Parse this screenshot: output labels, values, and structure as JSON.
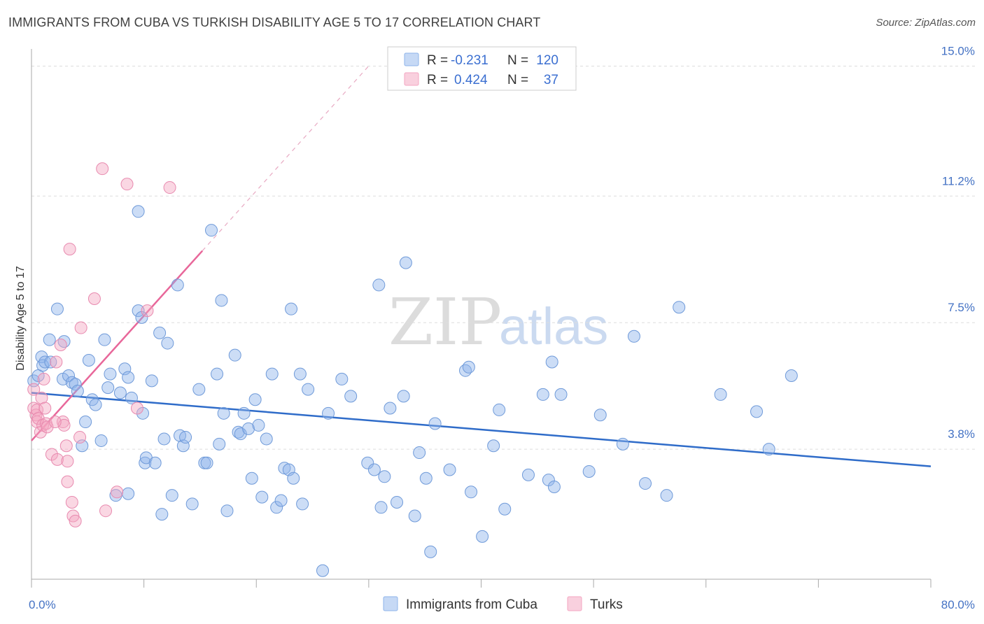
{
  "header": {
    "title": "IMMIGRANTS FROM CUBA VS TURKISH DISABILITY AGE 5 TO 17 CORRELATION CHART",
    "source": "Source: ZipAtlas.com"
  },
  "watermark": {
    "zip": "ZIP",
    "atlas": "atlas"
  },
  "legend": {
    "rows": [
      {
        "r_label": "R =",
        "r_value": "-0.231",
        "n_label": "N =",
        "n_value": "120",
        "color": "#8fb4ea"
      },
      {
        "r_label": "R =",
        "r_value": "0.424",
        "n_label": "N =",
        "n_value": "37",
        "color": "#f4a6c2"
      }
    ]
  },
  "chart_data": {
    "type": "scatter",
    "ylabel": "Disability Age 5 to 17",
    "xlim": [
      0,
      80
    ],
    "ylim": [
      0,
      15.5
    ],
    "y_ticks": [
      {
        "value": 3.8,
        "label": "3.8%"
      },
      {
        "value": 7.5,
        "label": "7.5%"
      },
      {
        "value": 11.2,
        "label": "11.2%"
      },
      {
        "value": 15.0,
        "label": "15.0%"
      }
    ],
    "x_tick_labels": [
      {
        "value": 0,
        "label": "0.0%"
      },
      {
        "value": 80,
        "label": "80.0%"
      }
    ],
    "grid": true,
    "legend_position": "top-center",
    "series": [
      {
        "name": "Immigrants from Cuba",
        "color": "#8fb4ea",
        "edge": "#6f9ad9",
        "trend": {
          "x": [
            0,
            80
          ],
          "y": [
            5.45,
            3.3
          ],
          "color": "#2f6cc9"
        },
        "points": [
          [
            0.2,
            5.8
          ],
          [
            0.6,
            5.95
          ],
          [
            0.9,
            6.5
          ],
          [
            1.0,
            6.25
          ],
          [
            1.2,
            6.35
          ],
          [
            1.6,
            7.0
          ],
          [
            1.7,
            6.35
          ],
          [
            2.3,
            7.9
          ],
          [
            2.8,
            5.85
          ],
          [
            2.9,
            6.95
          ],
          [
            3.3,
            5.95
          ],
          [
            3.6,
            5.75
          ],
          [
            3.9,
            5.7
          ],
          [
            4.1,
            5.5
          ],
          [
            4.5,
            3.9
          ],
          [
            4.8,
            4.6
          ],
          [
            5.1,
            6.4
          ],
          [
            5.4,
            5.25
          ],
          [
            5.7,
            5.1
          ],
          [
            6.2,
            4.05
          ],
          [
            6.5,
            7.0
          ],
          [
            6.8,
            5.6
          ],
          [
            7.0,
            6.0
          ],
          [
            7.5,
            2.45
          ],
          [
            7.9,
            5.45
          ],
          [
            8.3,
            6.15
          ],
          [
            8.6,
            5.9
          ],
          [
            8.6,
            2.5
          ],
          [
            8.9,
            5.3
          ],
          [
            9.5,
            7.85
          ],
          [
            9.5,
            10.75
          ],
          [
            9.8,
            7.65
          ],
          [
            9.9,
            4.85
          ],
          [
            10.1,
            3.4
          ],
          [
            10.2,
            3.55
          ],
          [
            10.7,
            5.8
          ],
          [
            11.0,
            3.4
          ],
          [
            11.4,
            7.2
          ],
          [
            11.6,
            1.9
          ],
          [
            11.8,
            4.1
          ],
          [
            12.1,
            6.9
          ],
          [
            12.5,
            2.45
          ],
          [
            13.0,
            8.6
          ],
          [
            13.2,
            4.2
          ],
          [
            13.5,
            3.9
          ],
          [
            13.7,
            4.15
          ],
          [
            14.3,
            2.2
          ],
          [
            14.9,
            5.55
          ],
          [
            15.4,
            3.4
          ],
          [
            15.6,
            3.4
          ],
          [
            16.0,
            10.2
          ],
          [
            16.5,
            6.0
          ],
          [
            16.7,
            3.95
          ],
          [
            16.9,
            8.15
          ],
          [
            17.1,
            4.85
          ],
          [
            17.4,
            2.0
          ],
          [
            18.1,
            6.55
          ],
          [
            18.4,
            4.3
          ],
          [
            18.6,
            4.25
          ],
          [
            18.9,
            4.85
          ],
          [
            19.3,
            4.4
          ],
          [
            19.6,
            2.95
          ],
          [
            19.9,
            5.25
          ],
          [
            20.2,
            4.5
          ],
          [
            20.5,
            2.4
          ],
          [
            20.9,
            4.1
          ],
          [
            21.4,
            6.0
          ],
          [
            21.8,
            2.1
          ],
          [
            22.2,
            2.3
          ],
          [
            22.5,
            3.25
          ],
          [
            22.9,
            3.2
          ],
          [
            23.1,
            7.9
          ],
          [
            23.3,
            2.95
          ],
          [
            23.9,
            6.0
          ],
          [
            24.1,
            2.2
          ],
          [
            24.6,
            5.55
          ],
          [
            25.9,
            0.25
          ],
          [
            26.4,
            4.85
          ],
          [
            27.6,
            5.85
          ],
          [
            28.4,
            5.35
          ],
          [
            29.9,
            3.4
          ],
          [
            30.5,
            3.2
          ],
          [
            30.9,
            8.6
          ],
          [
            31.1,
            2.1
          ],
          [
            31.4,
            3.0
          ],
          [
            31.9,
            5.0
          ],
          [
            32.5,
            2.25
          ],
          [
            33.1,
            5.35
          ],
          [
            33.3,
            9.25
          ],
          [
            34.1,
            1.85
          ],
          [
            34.5,
            3.7
          ],
          [
            35.1,
            2.95
          ],
          [
            35.5,
            0.8
          ],
          [
            35.9,
            4.55
          ],
          [
            37.2,
            3.2
          ],
          [
            38.6,
            6.1
          ],
          [
            38.9,
            6.2
          ],
          [
            39.1,
            2.55
          ],
          [
            40.1,
            1.25
          ],
          [
            41.1,
            3.9
          ],
          [
            41.6,
            4.95
          ],
          [
            42.1,
            2.05
          ],
          [
            44.2,
            3.05
          ],
          [
            45.5,
            5.4
          ],
          [
            46.0,
            2.9
          ],
          [
            46.3,
            6.35
          ],
          [
            46.5,
            2.7
          ],
          [
            47.1,
            5.4
          ],
          [
            49.6,
            3.15
          ],
          [
            50.6,
            4.8
          ],
          [
            52.6,
            3.95
          ],
          [
            53.6,
            7.1
          ],
          [
            54.6,
            2.8
          ],
          [
            56.5,
            2.45
          ],
          [
            57.6,
            7.95
          ],
          [
            61.3,
            5.4
          ],
          [
            64.5,
            4.9
          ],
          [
            65.6,
            3.8
          ],
          [
            67.6,
            5.95
          ]
        ]
      },
      {
        "name": "Turks",
        "color": "#f4a6c2",
        "edge": "#e88aaf",
        "trend": {
          "x": [
            0,
            15.2
          ],
          "y": [
            4.05,
            9.6
          ],
          "color": "#e8679a"
        },
        "points": [
          [
            0.2,
            5.55
          ],
          [
            0.2,
            5.0
          ],
          [
            0.4,
            4.8
          ],
          [
            0.5,
            4.6
          ],
          [
            0.5,
            4.95
          ],
          [
            0.6,
            4.7
          ],
          [
            0.8,
            4.3
          ],
          [
            0.9,
            5.3
          ],
          [
            1.0,
            4.5
          ],
          [
            1.1,
            5.85
          ],
          [
            1.2,
            5.0
          ],
          [
            1.3,
            4.55
          ],
          [
            1.4,
            4.45
          ],
          [
            1.8,
            3.65
          ],
          [
            2.2,
            6.35
          ],
          [
            2.3,
            3.5
          ],
          [
            2.6,
            6.85
          ],
          [
            2.8,
            4.6
          ],
          [
            2.9,
            4.5
          ],
          [
            3.1,
            3.9
          ],
          [
            3.2,
            3.45
          ],
          [
            3.2,
            2.85
          ],
          [
            3.4,
            9.65
          ],
          [
            3.6,
            2.25
          ],
          [
            3.7,
            1.85
          ],
          [
            3.9,
            1.7
          ],
          [
            4.3,
            4.15
          ],
          [
            4.4,
            7.35
          ],
          [
            5.6,
            8.2
          ],
          [
            6.3,
            12.0
          ],
          [
            6.6,
            2.0
          ],
          [
            7.6,
            2.55
          ],
          [
            8.5,
            11.55
          ],
          [
            9.4,
            5.0
          ],
          [
            10.3,
            7.85
          ],
          [
            12.3,
            11.45
          ],
          [
            2.1,
            4.6
          ]
        ]
      }
    ]
  }
}
